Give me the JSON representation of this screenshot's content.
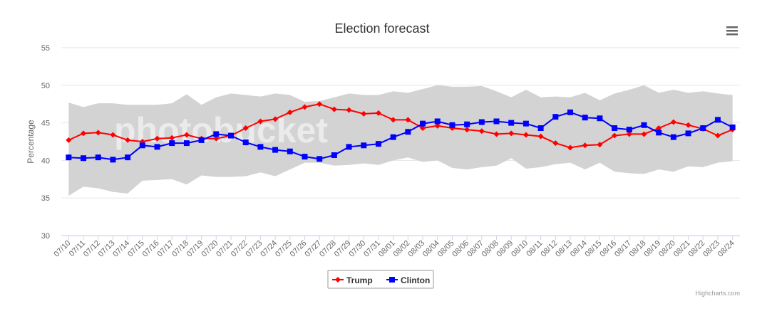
{
  "chart_data": {
    "type": "line",
    "title": "Election forecast",
    "ylabel": "Percentage",
    "xlabel": "",
    "ylim": [
      30,
      55
    ],
    "yticks": [
      30,
      35,
      40,
      45,
      50,
      55
    ],
    "grid": true,
    "legend_position": "bottom-center",
    "categories": [
      "07/10",
      "07/11",
      "07/12",
      "07/13",
      "07/14",
      "07/15",
      "07/16",
      "07/17",
      "07/18",
      "07/19",
      "07/20",
      "07/21",
      "07/22",
      "07/23",
      "07/24",
      "07/25",
      "07/26",
      "07/27",
      "07/28",
      "07/29",
      "07/30",
      "07/31",
      "08/01",
      "08/02",
      "08/03",
      "08/04",
      "08/05",
      "08/06",
      "08/07",
      "08/08",
      "08/09",
      "08/10",
      "08/11",
      "08/12",
      "08/13",
      "08/14",
      "08/15",
      "08/16",
      "08/17",
      "08/18",
      "08/19",
      "08/20",
      "08/21",
      "08/22",
      "08/23",
      "08/24"
    ],
    "band": {
      "upper": [
        47.7,
        47.1,
        47.6,
        47.6,
        47.4,
        47.4,
        47.4,
        47.6,
        48.8,
        47.4,
        48.4,
        48.9,
        48.7,
        48.5,
        48.9,
        48.7,
        47.8,
        47.9,
        48.4,
        48.9,
        48.7,
        48.7,
        49.2,
        49.0,
        49.5,
        50.0,
        49.8,
        49.8,
        49.9,
        49.2,
        48.4,
        49.4,
        48.4,
        48.5,
        48.4,
        49.0,
        48.0,
        48.9,
        49.4,
        50.0,
        49.0,
        49.4,
        49.0,
        49.2,
        48.9,
        48.7
      ],
      "lower": [
        35.3,
        36.5,
        36.3,
        35.8,
        35.6,
        37.3,
        37.4,
        37.5,
        36.8,
        38.0,
        37.8,
        37.8,
        37.9,
        38.4,
        37.9,
        38.8,
        39.7,
        39.7,
        39.3,
        39.4,
        39.6,
        39.4,
        40.0,
        40.4,
        39.8,
        40.0,
        39.0,
        38.8,
        39.1,
        39.3,
        40.3,
        38.9,
        39.1,
        39.5,
        39.7,
        38.8,
        39.7,
        38.5,
        38.3,
        38.2,
        38.8,
        38.5,
        39.2,
        39.1,
        39.7,
        39.9
      ],
      "color": "#d3d3d3"
    },
    "series": [
      {
        "name": "Trump",
        "color": "#ff0000",
        "marker": "diamond",
        "values": [
          42.7,
          43.6,
          43.7,
          43.4,
          42.7,
          42.5,
          42.9,
          43.0,
          43.4,
          42.9,
          42.9,
          43.3,
          44.3,
          45.2,
          45.5,
          46.4,
          47.1,
          47.5,
          46.8,
          46.7,
          46.2,
          46.3,
          45.4,
          45.4,
          44.3,
          44.6,
          44.3,
          44.1,
          43.9,
          43.5,
          43.6,
          43.4,
          43.2,
          42.3,
          41.7,
          42.0,
          42.1,
          43.3,
          43.5,
          43.5,
          44.3,
          45.1,
          44.7,
          44.2,
          43.3,
          44.1
        ]
      },
      {
        "name": "Clinton",
        "color": "#0000ff",
        "marker": "square",
        "values": [
          40.4,
          40.3,
          40.4,
          40.1,
          40.4,
          42.0,
          41.8,
          42.3,
          42.3,
          42.7,
          43.5,
          43.3,
          42.4,
          41.8,
          41.4,
          41.2,
          40.5,
          40.2,
          40.7,
          41.8,
          42.0,
          42.2,
          43.1,
          43.8,
          44.9,
          45.2,
          44.7,
          44.8,
          45.1,
          45.2,
          45.0,
          44.9,
          44.3,
          45.8,
          46.4,
          45.7,
          45.6,
          44.3,
          44.1,
          44.7,
          43.7,
          43.1,
          43.6,
          44.3,
          45.4,
          44.4
        ]
      }
    ],
    "credits": "Highcharts.com",
    "watermark": "photobucket"
  },
  "ui": {
    "menu_icon": "hamburger-menu-icon"
  }
}
